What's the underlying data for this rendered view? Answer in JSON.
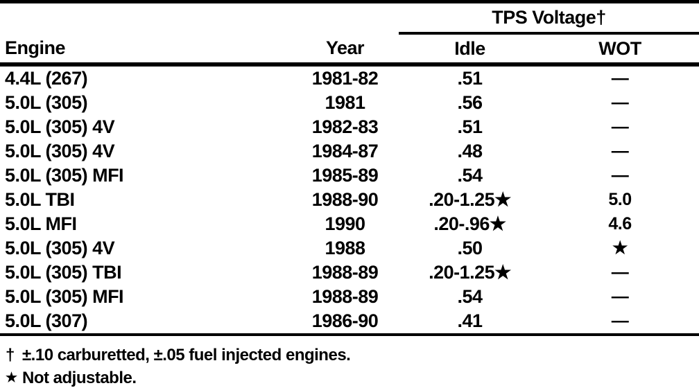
{
  "colors": {
    "ink": "#000000",
    "paper": "#ffffff"
  },
  "table": {
    "group_header": "TPS Voltage†",
    "headers": {
      "engine": "Engine",
      "year": "Year",
      "idle": "Idle",
      "wot": "WOT"
    },
    "rows": [
      {
        "engine": "4.4L (267)",
        "year": "1981-82",
        "idle": ".51",
        "wot": "—"
      },
      {
        "engine": "5.0L (305)",
        "year": "1981",
        "idle": ".56",
        "wot": "—"
      },
      {
        "engine": "5.0L (305) 4V",
        "year": "1982-83",
        "idle": ".51",
        "wot": "—"
      },
      {
        "engine": "5.0L (305) 4V",
        "year": "1984-87",
        "idle": ".48",
        "wot": "—"
      },
      {
        "engine": "5.0L (305) MFI",
        "year": "1985-89",
        "idle": ".54",
        "wot": "—"
      },
      {
        "engine": "5.0L TBI",
        "year": "1988-90",
        "idle": ".20-1.25★",
        "wot": "5.0"
      },
      {
        "engine": "5.0L MFI",
        "year": "1990",
        "idle": ".20-.96★",
        "wot": "4.6"
      },
      {
        "engine": "5.0L (305) 4V",
        "year": "1988",
        "idle": ".50",
        "wot": "★"
      },
      {
        "engine": "5.0L (305) TBI",
        "year": "1988-89",
        "idle": ".20-1.25★",
        "wot": "—"
      },
      {
        "engine": "5.0L (305) MFI",
        "year": "1988-89",
        "idle": ".54",
        "wot": "—"
      },
      {
        "engine": "5.0L (307)",
        "year": "1986-90",
        "idle": ".41",
        "wot": "—"
      }
    ]
  },
  "footnotes": [
    {
      "marker": "†",
      "text": "±.10 carburetted, ±.05 fuel injected engines."
    },
    {
      "marker": "★",
      "text": "Not adjustable."
    }
  ]
}
